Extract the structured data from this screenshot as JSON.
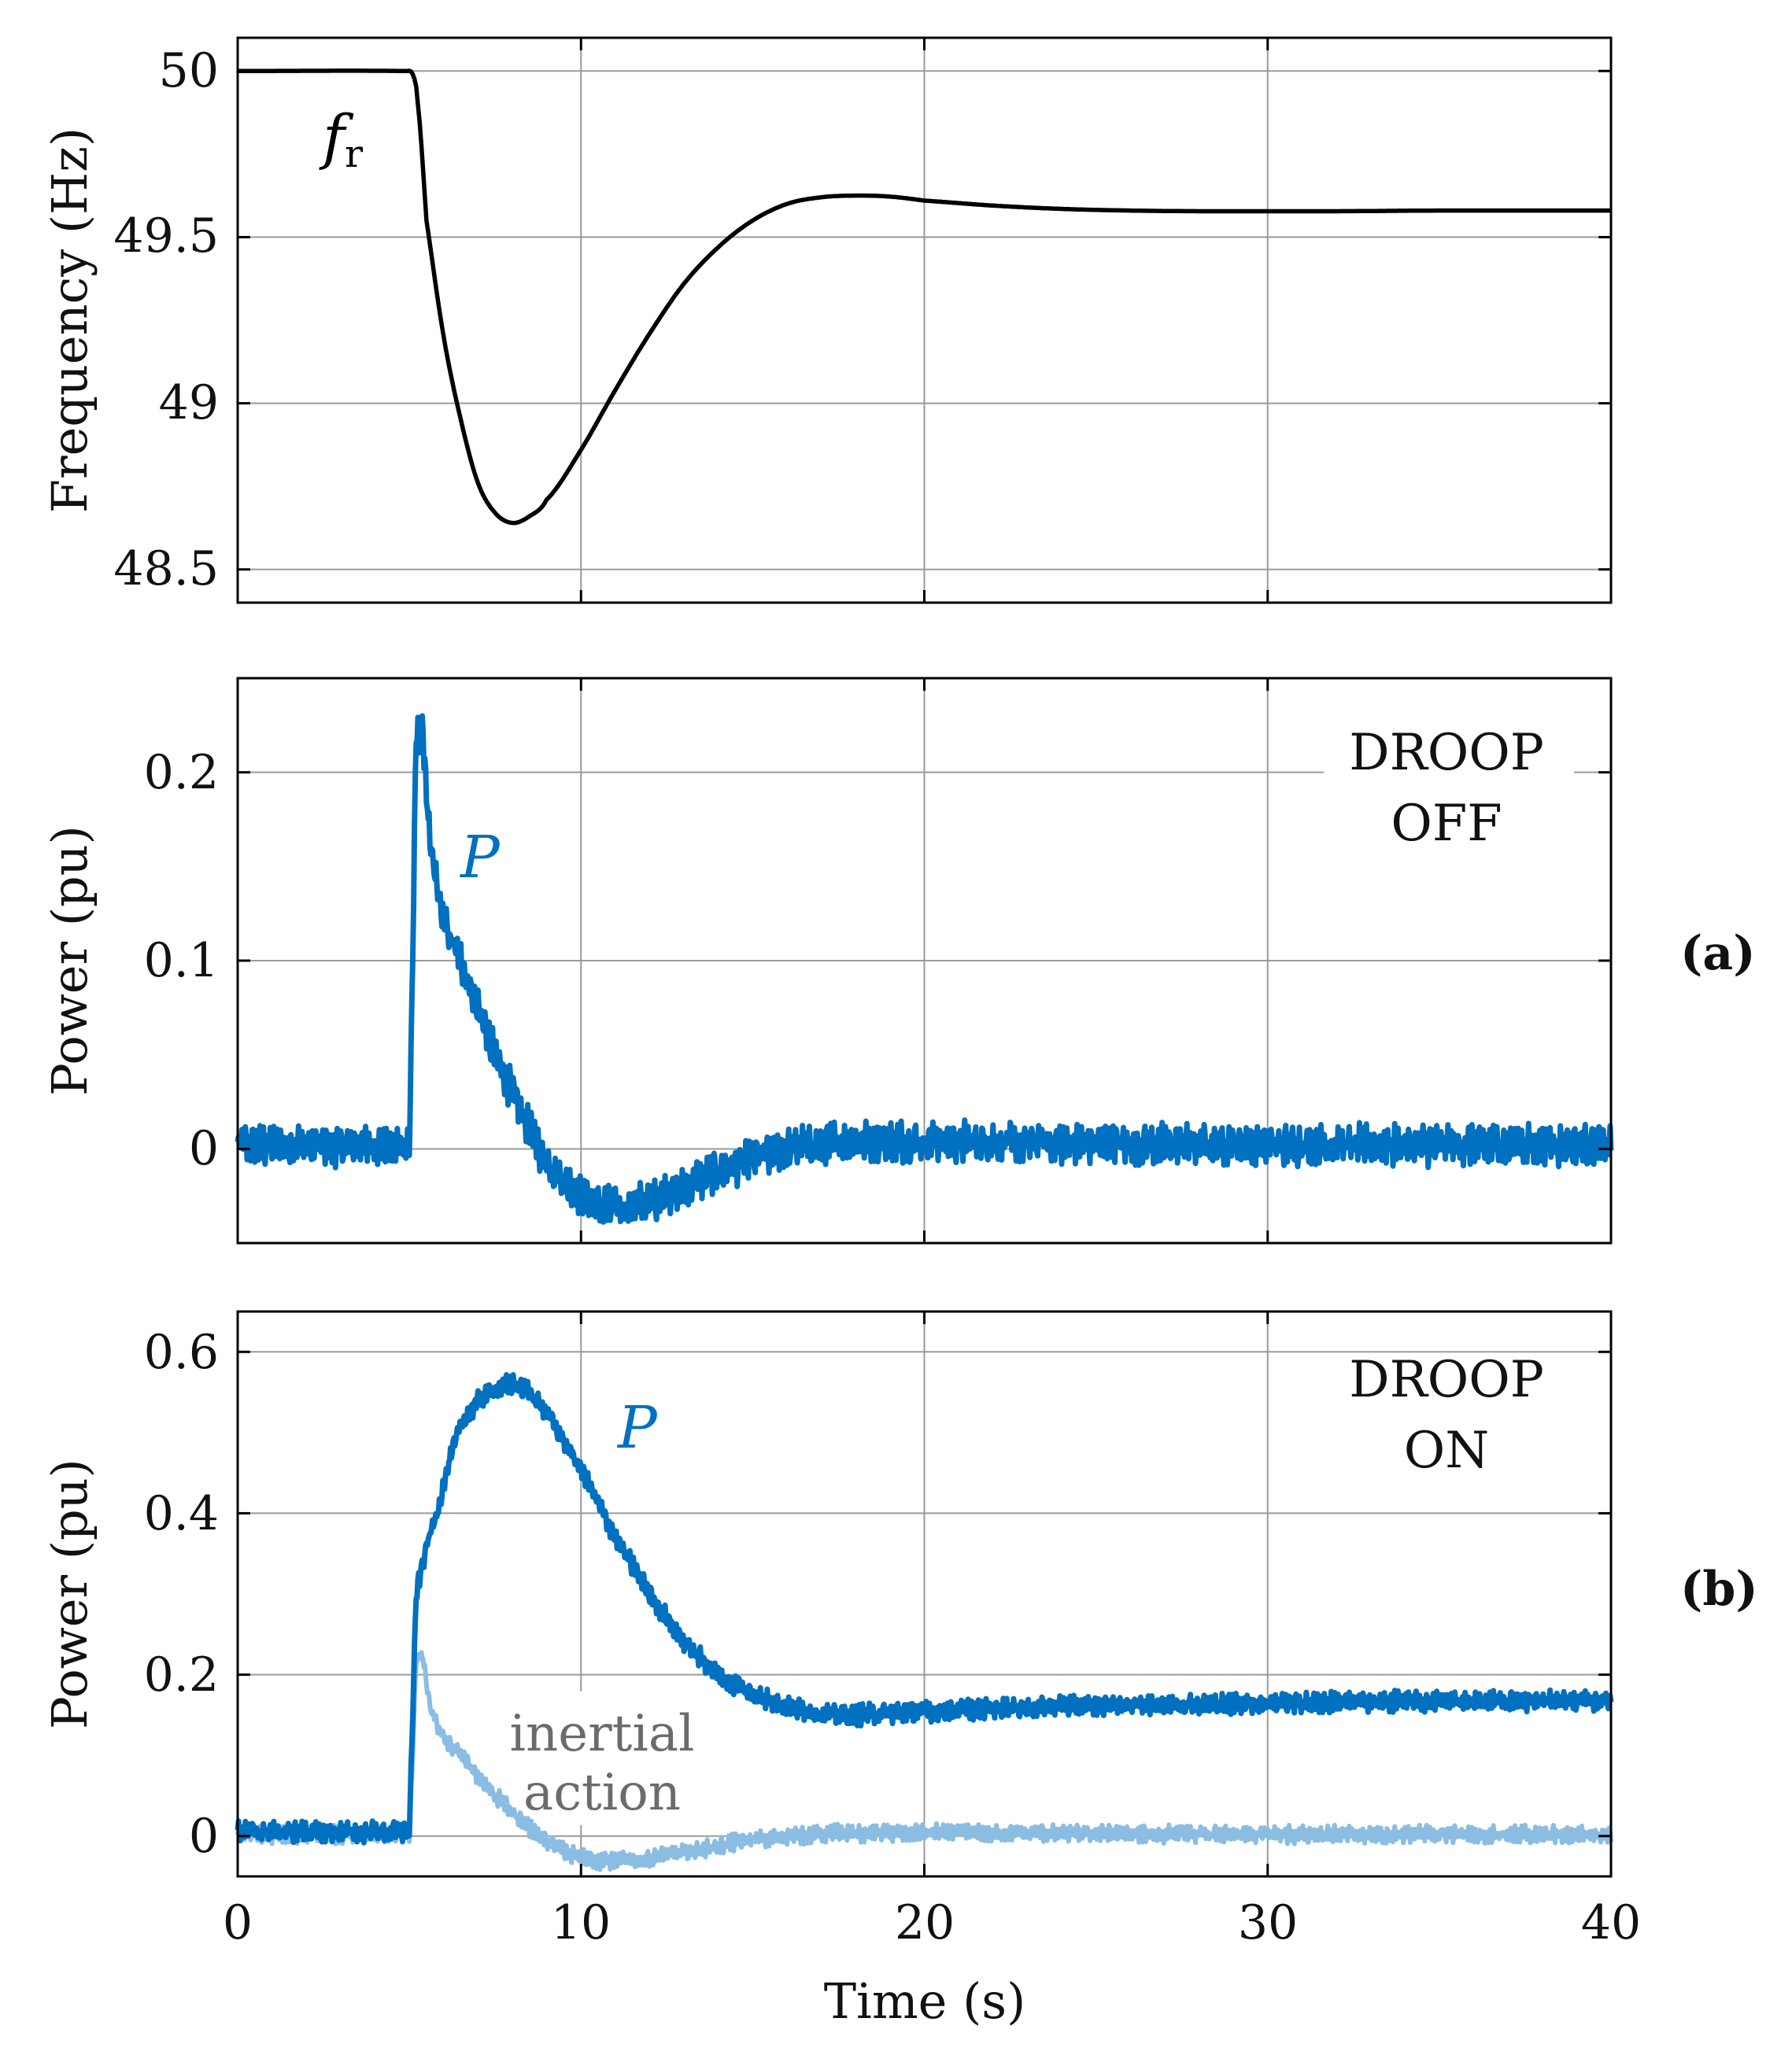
{
  "colors": {
    "frequency": "#000000",
    "power": "#0070C0",
    "inertial": "#8BBDE3",
    "grid": "#9a9a9a",
    "inertial_text": "#6b6b6b"
  },
  "chart_data": [
    {
      "type": "line",
      "panel": "top",
      "ylabel": "Frequency (Hz)",
      "xlim": [
        0,
        40
      ],
      "ylim": [
        48.4,
        50.1
      ],
      "yticks": [
        48.5,
        49,
        49.5,
        50
      ],
      "ytick_labels": [
        "48.5",
        "49",
        "49.5",
        "50"
      ],
      "xticks": [
        0,
        10,
        20,
        30,
        40
      ],
      "grid": true,
      "series": [
        {
          "name": "f_r",
          "label_main": "f",
          "label_sub": "r",
          "x": [
            0,
            4.9,
            5.1,
            5.25,
            5.5,
            6,
            6.5,
            7,
            7.5,
            8,
            8.5,
            9,
            10,
            11,
            12,
            13,
            14,
            15,
            16,
            17,
            18,
            19,
            20,
            22,
            24,
            26,
            28,
            30,
            32,
            35,
            40
          ],
          "y": [
            50.0,
            50.0,
            49.99,
            49.9,
            49.55,
            49.2,
            48.95,
            48.76,
            48.67,
            48.64,
            48.66,
            48.71,
            48.86,
            49.04,
            49.21,
            49.36,
            49.47,
            49.55,
            49.6,
            49.62,
            49.625,
            49.622,
            49.61,
            49.595,
            49.585,
            49.58,
            49.578,
            49.578,
            49.578,
            49.58,
            49.58
          ]
        }
      ]
    },
    {
      "type": "line",
      "panel": "a",
      "panel_label": "(a)",
      "annotation": [
        "DROOP",
        "OFF"
      ],
      "ylabel": "Power (pu)",
      "xlim": [
        0,
        40
      ],
      "ylim": [
        -0.05,
        0.25
      ],
      "yticks": [
        0,
        0.1,
        0.2
      ],
      "ytick_labels": [
        "0",
        "0.1",
        "0.2"
      ],
      "xticks": [
        0,
        10,
        20,
        30,
        40
      ],
      "grid": true,
      "series": [
        {
          "name": "P",
          "label": "P",
          "noise_amplitude": 0.012,
          "x": [
            0,
            5.0,
            5.05,
            5.2,
            5.4,
            5.6,
            6.0,
            6.5,
            7,
            7.5,
            8,
            8.5,
            9,
            9.5,
            10,
            10.5,
            11,
            12,
            13,
            14,
            15,
            16,
            17,
            18,
            20,
            25,
            30,
            35,
            40
          ],
          "y": [
            0.002,
            0.002,
            0.05,
            0.22,
            0.22,
            0.16,
            0.12,
            0.1,
            0.075,
            0.05,
            0.03,
            0.01,
            -0.007,
            -0.018,
            -0.025,
            -0.03,
            -0.031,
            -0.028,
            -0.02,
            -0.012,
            -0.005,
            0.0,
            0.003,
            0.004,
            0.004,
            0.003,
            0.002,
            0.002,
            0.002
          ]
        }
      ]
    },
    {
      "type": "line",
      "panel": "b",
      "panel_label": "(b)",
      "annotation": [
        "DROOP",
        "ON"
      ],
      "ylabel": "Power (pu)",
      "xlabel": "Time (s)",
      "xlim": [
        0,
        40
      ],
      "ylim": [
        -0.05,
        0.65
      ],
      "yticks": [
        0,
        0.2,
        0.4,
        0.6
      ],
      "ytick_labels": [
        "0",
        "0.2",
        "0.4",
        "0.6"
      ],
      "xticks": [
        0,
        10,
        20,
        30,
        40
      ],
      "xtick_labels": [
        "0",
        "10",
        "20",
        "30",
        "40"
      ],
      "grid": true,
      "series": [
        {
          "name": "inertial action",
          "label": [
            "inertial",
            "action"
          ],
          "noise_amplitude": 0.012,
          "x": [
            0,
            5.0,
            5.05,
            5.2,
            5.4,
            5.6,
            6.0,
            6.5,
            7,
            7.5,
            8,
            8.5,
            9,
            9.5,
            10,
            10.5,
            11,
            12,
            13,
            14,
            15,
            16,
            17,
            18,
            20,
            25,
            30,
            35,
            40
          ],
          "y": [
            0.002,
            0.002,
            0.05,
            0.22,
            0.22,
            0.16,
            0.12,
            0.1,
            0.075,
            0.05,
            0.03,
            0.01,
            -0.007,
            -0.018,
            -0.025,
            -0.03,
            -0.031,
            -0.028,
            -0.02,
            -0.012,
            -0.005,
            0.0,
            0.003,
            0.004,
            0.004,
            0.003,
            0.002,
            0.002,
            0.002
          ]
        },
        {
          "name": "P",
          "label": "P",
          "noise_amplitude": 0.014,
          "x": [
            0,
            5.0,
            5.05,
            5.2,
            5.5,
            5.8,
            6.2,
            6.5,
            7,
            7.5,
            8,
            8.5,
            9,
            9.5,
            10,
            11,
            12,
            13,
            14,
            15,
            16,
            17,
            18,
            19,
            20,
            25,
            30,
            35,
            40
          ],
          "y": [
            0.005,
            0.005,
            0.08,
            0.3,
            0.36,
            0.4,
            0.47,
            0.51,
            0.54,
            0.555,
            0.56,
            0.55,
            0.525,
            0.49,
            0.455,
            0.37,
            0.3,
            0.24,
            0.2,
            0.175,
            0.16,
            0.152,
            0.15,
            0.152,
            0.155,
            0.162,
            0.165,
            0.167,
            0.168
          ]
        }
      ]
    }
  ]
}
